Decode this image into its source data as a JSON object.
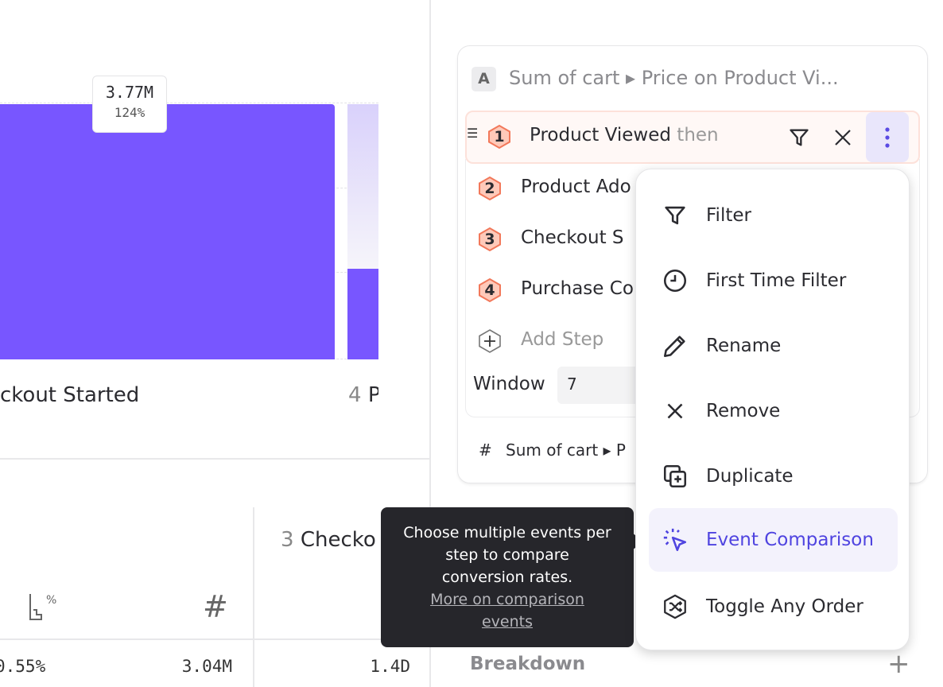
{
  "chart": {
    "bar_color": "#7856FF",
    "tooltip_value": "3.77M",
    "tooltip_percent": "124%",
    "step3_label": "ckout Started",
    "step4_num": "4",
    "step4_label": "P"
  },
  "table": {
    "col_header_num": "3",
    "col_header_label": "Checko",
    "row_values": [
      "0.55%",
      "3.04M",
      "1.4D"
    ]
  },
  "metric_card": {
    "badge": "A",
    "title": "Sum of cart ▸ Price on Product Vi...",
    "steps": [
      {
        "num": "1",
        "label": "Product Viewed",
        "suffix": "then"
      },
      {
        "num": "2",
        "label": "Product Ado"
      },
      {
        "num": "3",
        "label": "Checkout S"
      },
      {
        "num": "4",
        "label": "Purchase Co"
      }
    ],
    "add_step": "Add Step",
    "window_label": "Window",
    "window_value": "7",
    "measure": "Sum of cart ▸ P",
    "measure_icon": "#"
  },
  "breakdown_label": "Breakdown",
  "menu": {
    "items": [
      {
        "label": "Filter",
        "icon": "filter-icon"
      },
      {
        "label": "First Time Filter",
        "icon": "clock-icon"
      },
      {
        "label": "Rename",
        "icon": "pencil-icon"
      },
      {
        "label": "Remove",
        "icon": "close-icon"
      },
      {
        "label": "Duplicate",
        "icon": "duplicate-icon"
      },
      {
        "label": "Event Comparison",
        "icon": "cursor-click-icon",
        "highlighted": true
      },
      {
        "label": "Toggle Any Order",
        "icon": "shuffle-hex-icon"
      }
    ],
    "accent": "#4F44E0"
  },
  "tooltip": {
    "text": "Choose multiple events per step to compare conversion rates.",
    "link": "More on comparison events"
  }
}
